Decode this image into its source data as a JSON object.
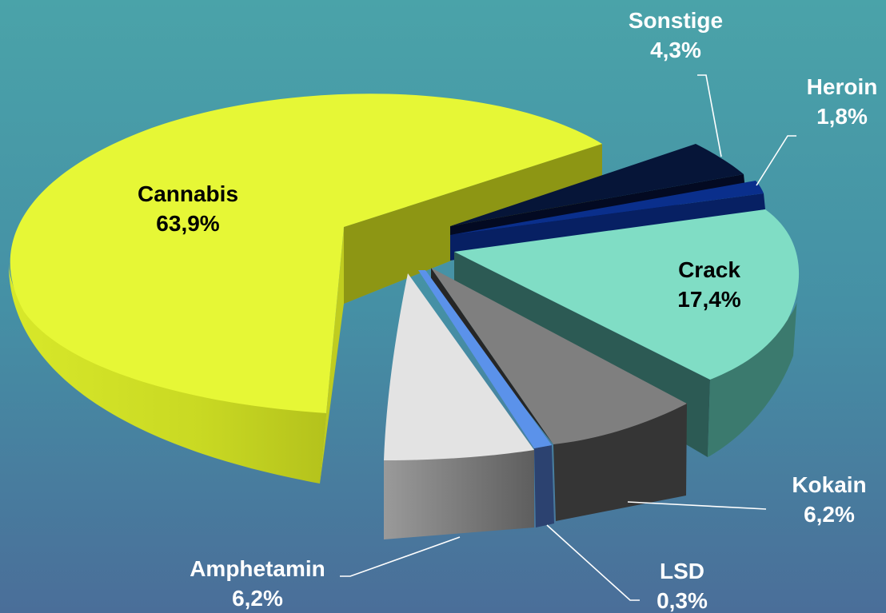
{
  "chart_data": {
    "type": "pie",
    "style": "3d-exploded",
    "slices": [
      {
        "label": "Cannabis",
        "value": 63.9,
        "display": "63,9%",
        "color": "#e4f536",
        "label_color": "#000000"
      },
      {
        "label": "Sonstige",
        "value": 4.3,
        "display": "4,3%",
        "color": "#07163e",
        "label_color": "#ffffff"
      },
      {
        "label": "Heroin",
        "value": 1.8,
        "display": "1,8%",
        "color": "#0a2f8c",
        "label_color": "#ffffff"
      },
      {
        "label": "Crack",
        "value": 17.4,
        "display": "17,4%",
        "color": "#7fdcc4",
        "label_color": "#000000"
      },
      {
        "label": "Kokain",
        "value": 6.2,
        "display": "6,2%",
        "color": "#808080",
        "label_color": "#ffffff"
      },
      {
        "label": "LSD",
        "value": 0.3,
        "display": "0,3%",
        "color": "#4b82d6",
        "label_color": "#ffffff"
      },
      {
        "label": "Amphetamin",
        "value": 6.2,
        "display": "6,2%",
        "color": "#e2e2e2",
        "label_color": "#ffffff"
      }
    ],
    "legend": "none"
  }
}
